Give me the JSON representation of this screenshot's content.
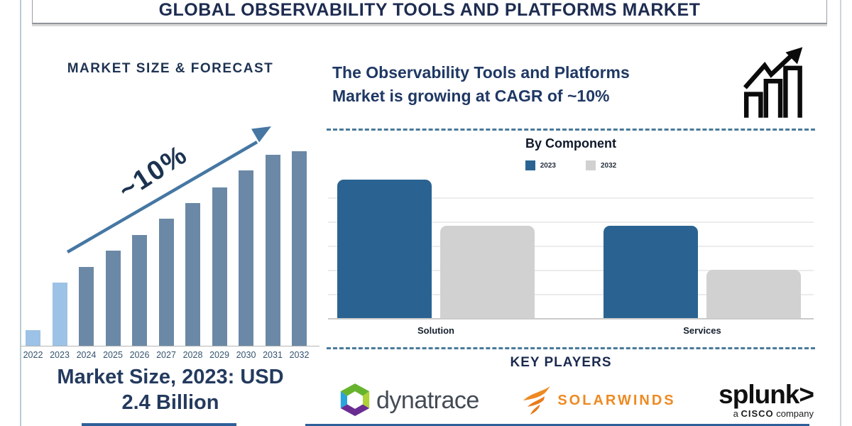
{
  "title": "GLOBAL OBSERVABILITY TOOLS AND PLATFORMS MARKET",
  "left_panel": {
    "heading": "MARKET SIZE & FORECAST",
    "growth_annotation": "~10%",
    "caption_line1": "Market Size, 2023: USD",
    "caption_line2": "2.4 Billion"
  },
  "right_panel": {
    "headline_line1": "The Observability Tools and Platforms",
    "headline_line2": "Market is growing at CAGR of ~10%",
    "component_chart_title": "By Component",
    "key_players_title": "KEY PLAYERS",
    "players": {
      "dynatrace_label": "dynatrace",
      "solarwinds_label": "SOLARWINDS",
      "splunk_label": "splunk>",
      "splunk_tagline_prefix": "a",
      "splunk_tagline_brand": "CISCO",
      "splunk_tagline_suffix": "company"
    }
  },
  "colors": {
    "navy": "#1d2c50",
    "steel_bar": "#6b89a6",
    "light_bar": "#9cc2e5",
    "arrow": "#4677a3",
    "component_blue": "#2a6391",
    "component_gray": "#d1d1d1",
    "dashed_divider": "#4a7a99",
    "solarwinds_orange": "#ee8a22",
    "underline_blue": "#2d5f9a"
  },
  "chart_data": [
    {
      "type": "bar",
      "title": "MARKET SIZE & FORECAST",
      "categories": [
        "2022",
        "2023",
        "2024",
        "2025",
        "2026",
        "2027",
        "2028",
        "2029",
        "2030",
        "2031",
        "2032"
      ],
      "values_relative_pct": [
        8,
        32.5,
        40.5,
        48.9,
        56.9,
        65.3,
        73.4,
        81.4,
        90.1,
        98.2,
        100
      ],
      "unit": "relative bar height, % of 2032 bar (no value axis shown)",
      "highlight_light_blue_categories": [
        "2022",
        "2023"
      ],
      "annotation": "~10%",
      "known_value": "Market Size, 2023: USD 2.4 Billion",
      "xlabel": "",
      "ylabel": "",
      "grid": false,
      "legend": false
    },
    {
      "type": "bar",
      "title": "By Component",
      "categories": [
        "Solution",
        "Services"
      ],
      "series": [
        {
          "name": "2023",
          "color": "#2a6391",
          "values_relative_pct": [
            100,
            66.7
          ]
        },
        {
          "name": "2032",
          "color": "#d1d1d1",
          "values_relative_pct": [
            66.7,
            34.9
          ]
        }
      ],
      "unit": "relative bar height, % of tallest bar (no value axis shown)",
      "legend_position": "top",
      "grid": true
    }
  ]
}
